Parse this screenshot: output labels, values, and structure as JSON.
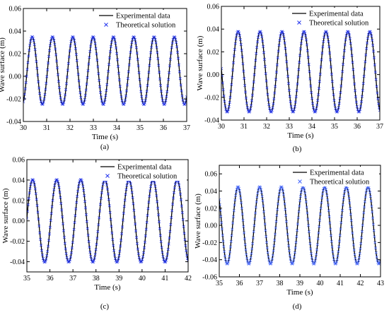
{
  "figure": {
    "caption_labels": [
      "(a)",
      "(b)",
      "(c)",
      "(d)"
    ]
  },
  "chart_data": [
    {
      "id": "a",
      "type": "line",
      "panel_label": "(a)",
      "xlabel": "Time (s)",
      "ylabel": "Wave surface (m)",
      "xlim": [
        30,
        37
      ],
      "ylim": [
        -0.04,
        0.06
      ],
      "xticks": [
        30,
        31,
        32,
        33,
        34,
        35,
        36,
        37
      ],
      "yticks": [
        -0.04,
        -0.02,
        0.0,
        0.02,
        0.04,
        0.06
      ],
      "ytick_labels": [
        "-0.04",
        "-0.02",
        "0.00",
        "0.02",
        "0.04",
        "0.06"
      ],
      "legend": {
        "position": "top-right"
      },
      "wave": {
        "offset": 0.005,
        "amplitude": 0.03,
        "period": 0.87,
        "peak_time": 30.38
      },
      "series": [
        {
          "name": "Experimental data",
          "style": "line",
          "color": "#000000"
        },
        {
          "name": "Theoretical solution",
          "style": "marker-x",
          "color": "#2233ee"
        }
      ]
    },
    {
      "id": "b",
      "type": "line",
      "panel_label": "(b)",
      "xlabel": "Time (s)",
      "ylabel": "Wave surface (m)",
      "xlim": [
        30,
        37
      ],
      "ylim": [
        -0.04,
        0.06
      ],
      "xticks": [
        30,
        31,
        32,
        33,
        34,
        35,
        36,
        37
      ],
      "yticks": [
        -0.04,
        -0.02,
        0.0,
        0.02,
        0.04,
        0.06
      ],
      "ytick_labels": [
        "-0.04",
        "-0.02",
        "0.00",
        "0.02",
        "0.04",
        "0.06"
      ],
      "legend": {
        "position": "top-right"
      },
      "wave": {
        "offset": 0.0025,
        "amplitude": 0.0355,
        "period": 0.97,
        "peak_time": 30.74
      },
      "series": [
        {
          "name": "Experimental data",
          "style": "line",
          "color": "#000000"
        },
        {
          "name": "Theoretical solution",
          "style": "marker-x",
          "color": "#2233ee"
        }
      ]
    },
    {
      "id": "c",
      "type": "line",
      "panel_label": "(c)",
      "xlabel": "Time (s)",
      "ylabel": "Wave surface (m)",
      "xlim": [
        35,
        42
      ],
      "ylim": [
        -0.05,
        0.06
      ],
      "xticks": [
        35,
        36,
        37,
        38,
        39,
        40,
        41,
        42
      ],
      "yticks": [
        -0.04,
        -0.02,
        0.0,
        0.02,
        0.04,
        0.06
      ],
      "ytick_labels": [
        "-0.04",
        "-0.02",
        "0.00",
        "0.02",
        "0.04",
        "0.06"
      ],
      "legend": {
        "position": "top-right"
      },
      "wave": {
        "offset": 0.0,
        "amplitude": 0.0405,
        "period": 1.045,
        "peak_time": 35.25
      },
      "series": [
        {
          "name": "Experimental data",
          "style": "line",
          "color": "#000000"
        },
        {
          "name": "Theoretical solution",
          "style": "marker-x",
          "color": "#2233ee"
        }
      ]
    },
    {
      "id": "d",
      "type": "line",
      "panel_label": "(d)",
      "xlabel": "Time (s)",
      "ylabel": "Wave surface (m)",
      "xlim": [
        35,
        43
      ],
      "ylim": [
        -0.06,
        0.07
      ],
      "xticks": [
        35,
        36,
        37,
        38,
        39,
        40,
        41,
        42,
        43
      ],
      "yticks": [
        -0.06,
        -0.04,
        -0.02,
        0.0,
        0.02,
        0.04,
        0.06
      ],
      "ytick_labels": [
        "-0.06",
        "-0.04",
        "-0.02",
        "0.00",
        "0.02",
        "0.04",
        "0.06"
      ],
      "legend": {
        "position": "top-right"
      },
      "wave": {
        "offset": 0.0,
        "amplitude": 0.045,
        "period": 1.075,
        "peak_time": 35.93
      },
      "series": [
        {
          "name": "Experimental data",
          "style": "line",
          "color": "#000000"
        },
        {
          "name": "Theoretical solution",
          "style": "marker-x",
          "color": "#4466ff"
        }
      ]
    }
  ]
}
